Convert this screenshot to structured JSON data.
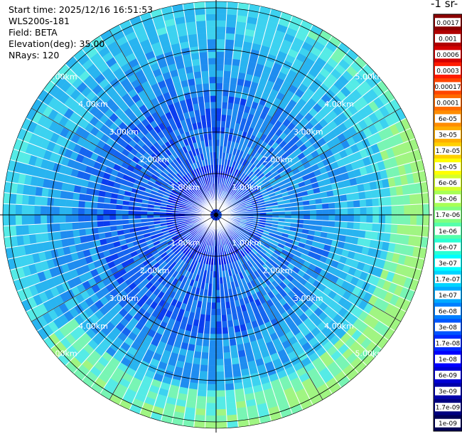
{
  "header": {
    "start_time": "Start time: 2025/12/16 16:51:53",
    "instrument": "WLS200s-181",
    "field": "Field: BETA",
    "elevation": "Elevation(deg): 35.00",
    "nrays": "NRays: 120"
  },
  "colorbar": {
    "title": "-1 sr-",
    "labels": [
      "0.0017",
      "0.001",
      "0.0006",
      "0.0003",
      "0.00017",
      "0.0001",
      "6e-05",
      "3e-05",
      "1.7e-05",
      "1e-05",
      "6e-06",
      "3e-06",
      "1.7e-06",
      "1e-06",
      "6e-07",
      "3e-07",
      "1.7e-07",
      "1e-07",
      "6e-08",
      "3e-08",
      "1.7e-08",
      "1e-08",
      "6e-09",
      "3e-09",
      "1.7e-09",
      "1e-09"
    ],
    "colors": [
      "#8b0000",
      "#b00000",
      "#d40000",
      "#ff1a00",
      "#ff4500",
      "#ff6a00",
      "#ff8c00",
      "#ffae00",
      "#ffd000",
      "#ffff00",
      "#d6ff2a",
      "#a8ff55",
      "#80ff80",
      "#55ffaa",
      "#2affd4",
      "#00ffff",
      "#00d4ff",
      "#00aaff",
      "#0080ff",
      "#0055ff",
      "#002aff",
      "#0000ff",
      "#0000d4",
      "#0000aa",
      "#00007f",
      "#000055"
    ]
  },
  "chart_data": {
    "type": "ppi",
    "field": "BETA",
    "elevation_deg": 35.0,
    "nrays": 120,
    "range_rings_km": [
      1,
      2,
      3,
      4,
      5
    ],
    "range_ring_labels": [
      "1.00km",
      "2.00km",
      "3.00km",
      "4.00km",
      "5.00km"
    ],
    "max_range_km": 5.0,
    "colorscale": "log",
    "value_range": [
      1e-09,
      0.0017
    ]
  }
}
